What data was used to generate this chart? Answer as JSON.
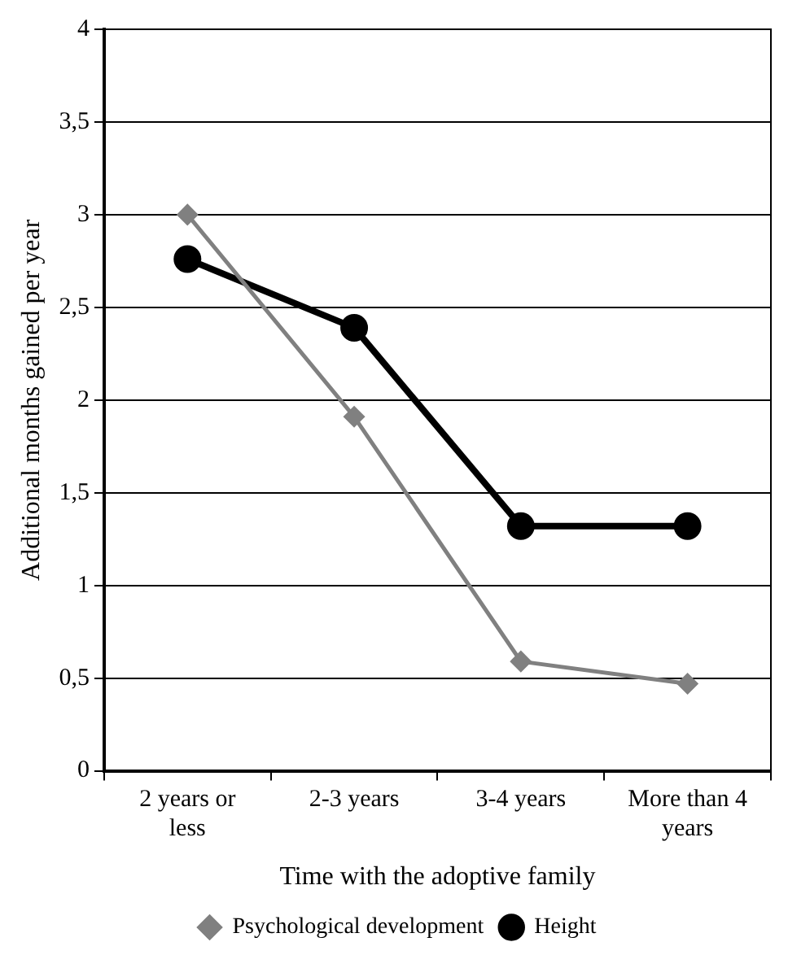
{
  "chart_data": {
    "type": "line",
    "xlabel": "Time with the adoptive family",
    "ylabel": "Additional months gained per year",
    "categories": [
      "2 years or less",
      "2-3 years",
      "3-4 years",
      "More than 4 years"
    ],
    "series": [
      {
        "name": "Psychological development",
        "color": "#808080",
        "values": [
          3.0,
          1.91,
          0.59,
          0.47
        ],
        "marker": "diamond"
      },
      {
        "name": "Height",
        "color": "#000000",
        "values": [
          2.76,
          2.39,
          1.32,
          1.32
        ],
        "marker": "circle"
      }
    ],
    "ylim": [
      0,
      4
    ],
    "yticks": [
      0,
      {
        "value": 0.5,
        "label": "0,5"
      },
      1,
      {
        "value": 1.5,
        "label": "1,5"
      },
      2,
      {
        "value": 2.5,
        "label": "2,5"
      },
      3,
      {
        "value": 3.5,
        "label": "3,5"
      },
      4
    ],
    "grid": "y",
    "legend": "bottom",
    "line_style": "solid"
  }
}
